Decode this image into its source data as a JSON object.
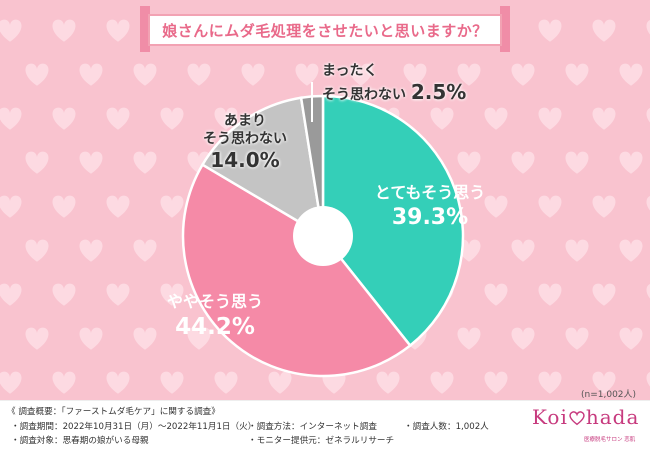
{
  "title": "娘さんにムダ毛処理をさせたいと思いますか？",
  "colors": {
    "background": "#f9c3cf",
    "accent": "#e96a8a",
    "footer_bg": "#ffffff"
  },
  "chart_data": {
    "type": "pie",
    "style": "donut",
    "categories": [
      "とてもそう思う",
      "ややそう思う",
      "あまり そう思わない",
      "まったく そう思わない"
    ],
    "values": [
      39.3,
      44.2,
      14.0,
      2.5
    ],
    "value_labels": [
      "39.3%",
      "44.2%",
      "14.0%",
      "2.5%"
    ],
    "colors": [
      "#34cfb8",
      "#f58aa7",
      "#c4c4c4",
      "#9a9a9a"
    ],
    "label_lines": [
      [
        "とてもそう思う"
      ],
      [
        "ややそう思う"
      ],
      [
        "あまり",
        "そう思わない"
      ],
      [
        "まったく",
        "そう思わない"
      ]
    ],
    "start_angle_deg": 0,
    "direction": "clockwise"
  },
  "sample_note": "(n=1,002人)",
  "footer": {
    "heading": "《 調査概要：「ファーストムダ毛ケア」に関する調査》",
    "items": [
      "・調査期間：2022年10月31日（月）～2022年11月1日（火）",
      "・調査対象：思春期の娘がいる母親",
      "・調査方法：インターネット調査",
      "・モニター提供元：ゼネラルリサーチ",
      "・調査人数：1,002人"
    ]
  },
  "logo": {
    "text_left": "Koi",
    "text_right": "hada",
    "tagline": "医療脱毛サロン 恋肌"
  }
}
